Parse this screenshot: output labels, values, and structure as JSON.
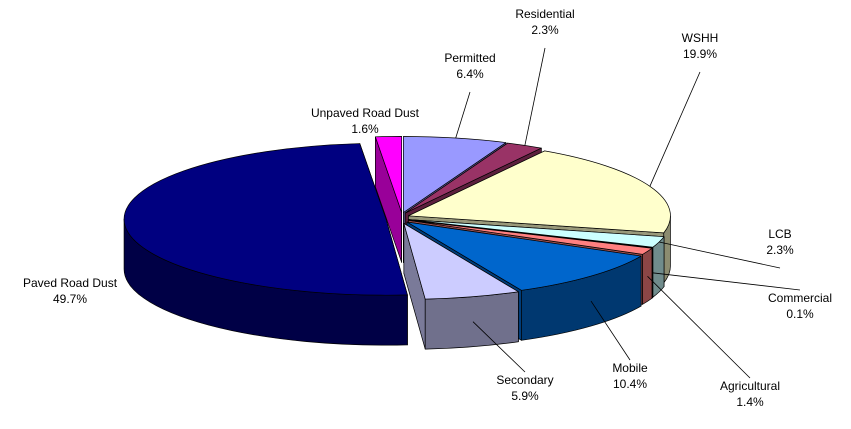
{
  "chart_data": {
    "type": "pie3d",
    "categories": [
      "Permitted",
      "Residential",
      "WSHH",
      "LCB",
      "Commercial",
      "Agricultural",
      "Mobile",
      "Secondary",
      "Paved Road Dust",
      "Unpaved Road Dust"
    ],
    "values": [
      6.4,
      2.3,
      19.9,
      2.3,
      0.1,
      1.4,
      10.4,
      5.9,
      49.7,
      1.6
    ],
    "value_labels": [
      "6.4%",
      "2.3%",
      "19.9%",
      "2.3%",
      "0.1%",
      "1.4%",
      "10.4%",
      "5.9%",
      "49.7%",
      "1.6%"
    ],
    "colors": [
      "#9999ff",
      "#993366",
      "#ffffcc",
      "#ccffff",
      "#660066",
      "#ff8080",
      "#0066cc",
      "#ccccff",
      "#000080",
      "#ff00ff"
    ]
  }
}
